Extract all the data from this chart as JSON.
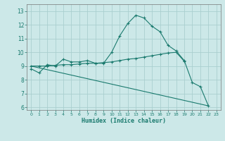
{
  "title": "",
  "xlabel": "Humidex (Indice chaleur)",
  "background_color": "#cce8e8",
  "grid_color": "#aacfcf",
  "line_color": "#1a7a6e",
  "xlim": [
    -0.5,
    23.5
  ],
  "ylim": [
    5.8,
    13.5
  ],
  "xticks": [
    0,
    1,
    2,
    3,
    4,
    5,
    6,
    7,
    8,
    9,
    10,
    11,
    12,
    13,
    14,
    15,
    16,
    17,
    18,
    19,
    20,
    21,
    22,
    23
  ],
  "yticks": [
    6,
    7,
    8,
    9,
    10,
    11,
    12,
    13
  ],
  "line1_x": [
    0,
    1,
    2,
    3,
    4,
    5,
    6,
    7,
    8,
    9,
    10,
    11,
    12,
    13,
    14,
    15,
    16,
    17,
    18,
    19,
    20,
    21,
    22
  ],
  "line1_y": [
    8.8,
    8.5,
    9.1,
    9.0,
    9.5,
    9.3,
    9.3,
    9.4,
    9.2,
    9.2,
    10.0,
    11.2,
    12.1,
    12.7,
    12.5,
    11.9,
    11.5,
    10.5,
    10.1,
    9.4,
    7.8,
    7.5,
    6.1
  ],
  "line2_x": [
    0,
    1,
    2,
    3,
    4,
    5,
    6,
    7,
    8,
    9,
    10,
    11,
    12,
    13,
    14,
    15,
    16,
    17,
    18,
    19
  ],
  "line2_y": [
    9.0,
    9.0,
    9.0,
    9.05,
    9.1,
    9.1,
    9.15,
    9.2,
    9.2,
    9.25,
    9.3,
    9.4,
    9.5,
    9.55,
    9.65,
    9.75,
    9.85,
    9.95,
    10.0,
    9.35
  ],
  "line3_x": [
    0,
    22
  ],
  "line3_y": [
    9.0,
    6.1
  ]
}
